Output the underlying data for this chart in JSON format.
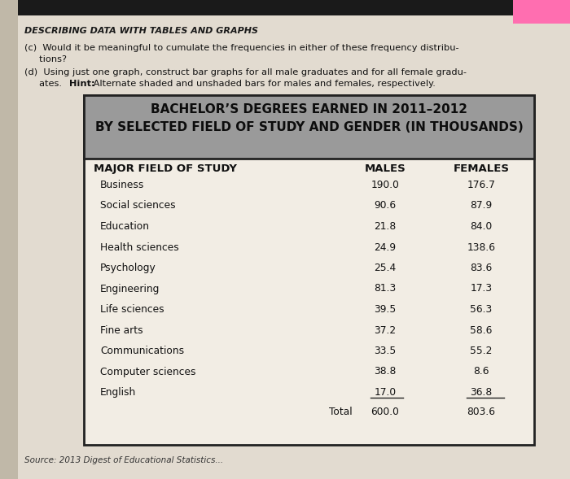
{
  "heading": "DESCRIBING DATA WITH TABLES AND GRAPHS",
  "qc_line1": "(c)  Would it be meaningful to cumulate the frequencies in either of these frequency distribu-",
  "qc_line2": "     tions?",
  "qd_line1": "(d)  Using just one graph, construct bar graphs for all male graduates and for all female gradu-",
  "qd_line2_pre": "     ates. ",
  "qd_hint": "Hint:",
  "qd_line2_post": " Alternate shaded and unshaded bars for males and females, respectively.",
  "table_title_line1": "BACHELOR’S DEGREES EARNED IN 2011–2012",
  "table_title_line2": "BY SELECTED FIELD OF STUDY AND GENDER (IN THOUSANDS)",
  "col_header_field": "MAJOR FIELD OF STUDY",
  "col_header_males": "MALES",
  "col_header_females": "FEMALES",
  "fields": [
    "Business",
    "Social sciences",
    "Education",
    "Health sciences",
    "Psychology",
    "Engineering",
    "Life sciences",
    "Fine arts",
    "Communications",
    "Computer sciences",
    "English"
  ],
  "males": [
    190.0,
    90.6,
    21.8,
    24.9,
    25.4,
    81.3,
    39.5,
    37.2,
    33.5,
    38.8,
    17.0
  ],
  "females": [
    176.7,
    87.9,
    84.0,
    138.6,
    83.6,
    17.3,
    56.3,
    58.6,
    55.2,
    8.6,
    36.8
  ],
  "total_label": "Total",
  "total_males": "600.0",
  "total_females": "803.6",
  "source_text": "Source: 2013 Digest of Educational Statistics...",
  "page_bg": "#d8d0c4",
  "table_bg": "#f2ede4",
  "table_border": "#222222",
  "header_bg": "#9a9a9a",
  "text_color": "#111111",
  "heading_color": "#1a1a1a"
}
